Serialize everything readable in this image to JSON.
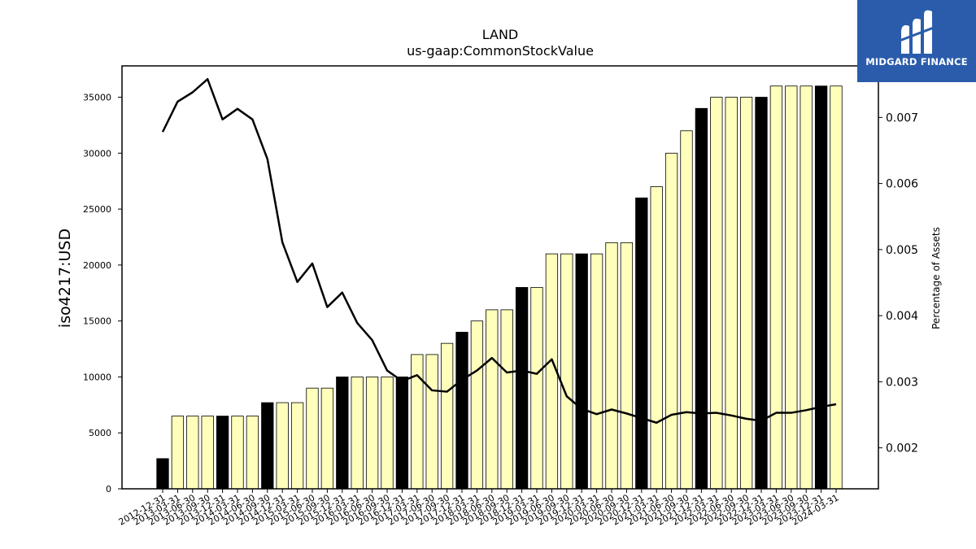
{
  "chart_data": {
    "type": "bar",
    "title": "LAND",
    "subtitle": "us-gaap:CommonStockValue",
    "ylabel": "iso4217:USD",
    "y2label": "Percentage of Assets",
    "ylim": [
      0,
      37800
    ],
    "y2lim": [
      0.00138,
      0.00778
    ],
    "yticks": [
      "0",
      "5000",
      "10000",
      "15000",
      "20000",
      "25000",
      "30000",
      "35000"
    ],
    "y2ticks": [
      "0.002",
      "0.003",
      "0.004",
      "0.005",
      "0.006",
      "0.007"
    ],
    "categories": [
      "2012-12-31",
      "2013-03-31",
      "2013-06-30",
      "2013-09-30",
      "2013-12-31",
      "2014-03-31",
      "2014-06-30",
      "2014-09-30",
      "2014-12-31",
      "2015-03-31",
      "2015-06-30",
      "2015-09-30",
      "2015-12-31",
      "2016-03-31",
      "2016-06-30",
      "2016-09-30",
      "2016-12-31",
      "2017-03-31",
      "2017-06-30",
      "2017-09-30",
      "2017-12-31",
      "2018-03-31",
      "2018-06-30",
      "2018-09-30",
      "2018-12-31",
      "2019-03-31",
      "2019-06-30",
      "2019-09-30",
      "2019-12-31",
      "2020-03-31",
      "2020-06-30",
      "2020-09-30",
      "2020-12-31",
      "2021-03-31",
      "2021-06-30",
      "2021-09-30",
      "2021-12-31",
      "2022-03-31",
      "2022-06-30",
      "2022-09-30",
      "2022-12-31",
      "2023-03-31",
      "2023-06-30",
      "2023-09-30",
      "2023-12-31",
      "2024-03-31"
    ],
    "series": [
      {
        "type": "bar",
        "values": [
          2700,
          6500,
          6500,
          6500,
          6500,
          6500,
          6500,
          7700,
          7700,
          7700,
          9000,
          9000,
          10000,
          10000,
          10000,
          10000,
          10000,
          12000,
          12000,
          13000,
          14000,
          15000,
          16000,
          16000,
          18000,
          18000,
          21000,
          21000,
          21000,
          21000,
          22000,
          22000,
          26000,
          27000,
          30000,
          32000,
          34000,
          35000,
          35000,
          35000,
          35000,
          36000,
          36000,
          36000,
          36000,
          36000
        ],
        "highlight": [
          true,
          false,
          false,
          false,
          true,
          false,
          false,
          true,
          false,
          false,
          false,
          false,
          true,
          false,
          false,
          false,
          true,
          false,
          false,
          false,
          true,
          false,
          false,
          false,
          true,
          false,
          false,
          false,
          true,
          false,
          false,
          false,
          true,
          false,
          false,
          false,
          true,
          false,
          false,
          false,
          true,
          false,
          false,
          false,
          true,
          false
        ],
        "color": "#ffffbb",
        "highlight_color": "#000000"
      },
      {
        "type": "line",
        "axis": "right",
        "values": [
          0.00678,
          0.00724,
          0.00738,
          0.00758,
          0.00697,
          0.00713,
          0.00697,
          0.00637,
          0.00511,
          0.00451,
          0.00479,
          0.00413,
          0.00435,
          0.00389,
          0.00363,
          0.00317,
          0.00301,
          0.0031,
          0.00287,
          0.00285,
          0.00303,
          0.00317,
          0.00336,
          0.00314,
          0.00317,
          0.00312,
          0.00334,
          0.00278,
          0.00259,
          0.00251,
          0.00258,
          0.00252,
          0.00245,
          0.00238,
          0.0025,
          0.00254,
          0.00252,
          0.00253,
          0.00249,
          0.00244,
          0.00241,
          0.00253,
          0.00253,
          0.00257,
          0.00262,
          0.00266
        ],
        "color": "#000000"
      }
    ]
  },
  "logo": {
    "text": "MIDGARD FINANCE"
  }
}
